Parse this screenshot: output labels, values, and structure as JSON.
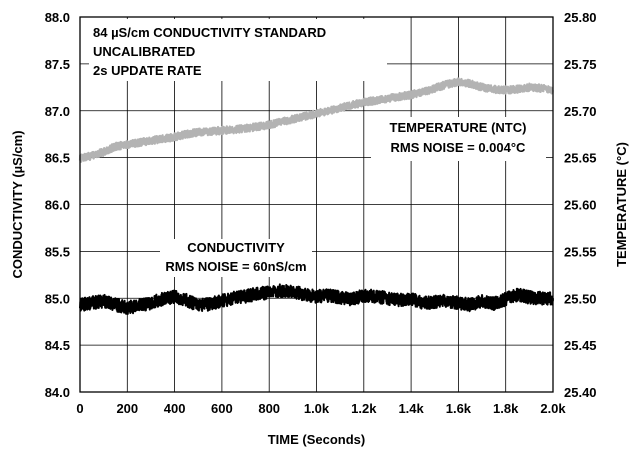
{
  "chart_data": {
    "type": "line",
    "xlabel": "TIME (Seconds)",
    "ylabel_left": "CONDUCTIVITY (µS/cm)",
    "ylabel_right": "TEMPERATURE (°C)",
    "xlim": [
      0,
      2000
    ],
    "ylim_left": [
      84.0,
      88.0
    ],
    "ylim_right": [
      25.4,
      25.8
    ],
    "grid": true,
    "x_ticks": [
      {
        "value": 0,
        "label": "0"
      },
      {
        "value": 200,
        "label": "200"
      },
      {
        "value": 400,
        "label": "400"
      },
      {
        "value": 600,
        "label": "600"
      },
      {
        "value": 800,
        "label": "800"
      },
      {
        "value": 1000,
        "label": "1.0k"
      },
      {
        "value": 1200,
        "label": "1.2k"
      },
      {
        "value": 1400,
        "label": "1.4k"
      },
      {
        "value": 1600,
        "label": "1.6k"
      },
      {
        "value": 1800,
        "label": "1.8k"
      },
      {
        "value": 2000,
        "label": "2.0k"
      }
    ],
    "y_ticks_left": [
      {
        "value": 84.0,
        "label": "84.0"
      },
      {
        "value": 84.5,
        "label": "84.5"
      },
      {
        "value": 85.0,
        "label": "85.0"
      },
      {
        "value": 85.5,
        "label": "85.5"
      },
      {
        "value": 86.0,
        "label": "86.0"
      },
      {
        "value": 86.5,
        "label": "86.5"
      },
      {
        "value": 87.0,
        "label": "87.0"
      },
      {
        "value": 87.5,
        "label": "87.5"
      },
      {
        "value": 88.0,
        "label": "88.0"
      }
    ],
    "y_ticks_right": [
      {
        "value": 25.4,
        "label": "25.40"
      },
      {
        "value": 25.45,
        "label": "25.45"
      },
      {
        "value": 25.5,
        "label": "25.50"
      },
      {
        "value": 25.55,
        "label": "25.55"
      },
      {
        "value": 25.6,
        "label": "25.60"
      },
      {
        "value": 25.65,
        "label": "25.65"
      },
      {
        "value": 25.7,
        "label": "25.70"
      },
      {
        "value": 25.75,
        "label": "25.75"
      },
      {
        "value": 25.8,
        "label": "25.80"
      }
    ],
    "series": [
      {
        "label_lines": [
          "CONDUCTIVITY",
          "RMS NOISE = 60nS/cm"
        ],
        "axis": "left",
        "color": "#000000",
        "x": [
          0,
          50,
          100,
          150,
          200,
          250,
          300,
          350,
          400,
          450,
          500,
          550,
          600,
          650,
          700,
          750,
          800,
          850,
          900,
          950,
          1000,
          1050,
          1100,
          1150,
          1200,
          1250,
          1300,
          1350,
          1400,
          1450,
          1500,
          1550,
          1600,
          1650,
          1700,
          1750,
          1800,
          1850,
          1900,
          1950,
          2000
        ],
        "values": [
          84.93,
          84.95,
          84.97,
          84.93,
          84.9,
          84.92,
          84.95,
          84.99,
          85.02,
          84.98,
          84.92,
          84.94,
          84.97,
          85.0,
          85.02,
          85.05,
          85.06,
          85.08,
          85.07,
          85.04,
          85.02,
          85.03,
          85.01,
          84.99,
          85.03,
          85.02,
          85.0,
          84.98,
          84.99,
          84.95,
          84.96,
          84.97,
          84.95,
          84.93,
          84.97,
          84.94,
          84.99,
          85.04,
          85.01,
          85.0,
          85.0
        ]
      },
      {
        "label_lines": [
          "TEMPERATURE (NTC)",
          "RMS NOISE = 0.004°C"
        ],
        "axis": "right",
        "color": "#b3b3b3",
        "x": [
          0,
          50,
          100,
          150,
          200,
          250,
          300,
          350,
          400,
          450,
          500,
          550,
          600,
          650,
          700,
          750,
          800,
          850,
          900,
          950,
          1000,
          1050,
          1100,
          1150,
          1200,
          1250,
          1300,
          1350,
          1400,
          1450,
          1500,
          1550,
          1600,
          1650,
          1700,
          1750,
          1800,
          1850,
          1900,
          1950,
          2000
        ],
        "values": [
          25.649,
          25.652,
          25.656,
          25.662,
          25.664,
          25.666,
          25.668,
          25.67,
          25.672,
          25.675,
          25.677,
          25.678,
          25.679,
          25.68,
          25.681,
          25.683,
          25.685,
          25.688,
          25.691,
          25.694,
          25.697,
          25.7,
          25.703,
          25.706,
          25.709,
          25.711,
          25.713,
          25.715,
          25.717,
          25.72,
          25.724,
          25.728,
          25.731,
          25.729,
          25.725,
          25.723,
          25.722,
          25.723,
          25.725,
          25.724,
          25.722
        ]
      }
    ],
    "annotation_lines": [
      "84 µS/cm CONDUCTIVITY STANDARD",
      "UNCALIBRATED",
      "2s UPDATE RATE"
    ]
  }
}
